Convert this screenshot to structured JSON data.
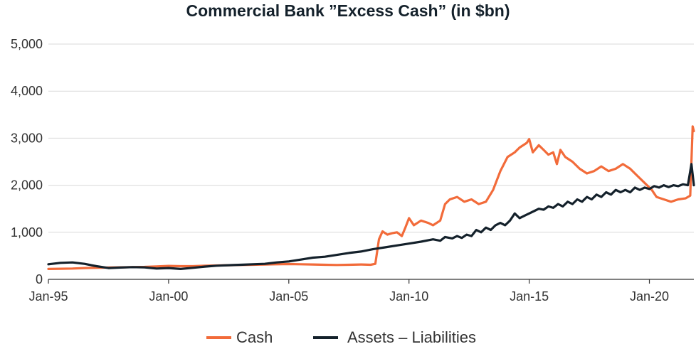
{
  "chart_data": {
    "type": "line",
    "title": "Commercial Bank ”Excess Cash” (in $bn)",
    "xlabel": "",
    "ylabel": "",
    "x_range": [
      1995.0,
      2021.85
    ],
    "ylim": [
      0,
      5000
    ],
    "y_ticks": [
      0,
      1000,
      2000,
      3000,
      4000,
      5000
    ],
    "y_tick_labels": [
      "0",
      "1,000",
      "2,000",
      "3,000",
      "4,000",
      "5,000"
    ],
    "x_ticks": [
      1995,
      2000,
      2005,
      2010,
      2015,
      2020
    ],
    "x_tick_labels": [
      "Jan-95",
      "Jan-00",
      "Jan-05",
      "Jan-10",
      "Jan-15",
      "Jan-20"
    ],
    "grid": "horizontal",
    "legend_position": "bottom",
    "series": [
      {
        "name": "Cash",
        "color": "#f26b3a",
        "points": [
          [
            1995.0,
            220
          ],
          [
            1995.5,
            225
          ],
          [
            1996.0,
            230
          ],
          [
            1996.5,
            240
          ],
          [
            1997.0,
            245
          ],
          [
            1997.5,
            250
          ],
          [
            1998.0,
            255
          ],
          [
            1998.5,
            260
          ],
          [
            1999.0,
            265
          ],
          [
            1999.5,
            275
          ],
          [
            2000.0,
            285
          ],
          [
            2000.5,
            280
          ],
          [
            2001.0,
            280
          ],
          [
            2001.5,
            290
          ],
          [
            2002.0,
            295
          ],
          [
            2002.5,
            300
          ],
          [
            2003.0,
            305
          ],
          [
            2003.5,
            310
          ],
          [
            2004.0,
            315
          ],
          [
            2004.5,
            320
          ],
          [
            2005.0,
            325
          ],
          [
            2005.5,
            320
          ],
          [
            2006.0,
            315
          ],
          [
            2006.5,
            310
          ],
          [
            2007.0,
            305
          ],
          [
            2007.5,
            310
          ],
          [
            2008.0,
            315
          ],
          [
            2008.4,
            310
          ],
          [
            2008.6,
            330
          ],
          [
            2008.75,
            850
          ],
          [
            2008.9,
            1020
          ],
          [
            2009.1,
            950
          ],
          [
            2009.3,
            980
          ],
          [
            2009.5,
            1000
          ],
          [
            2009.7,
            920
          ],
          [
            2009.85,
            1100
          ],
          [
            2010.0,
            1300
          ],
          [
            2010.2,
            1150
          ],
          [
            2010.5,
            1250
          ],
          [
            2010.8,
            1200
          ],
          [
            2011.0,
            1150
          ],
          [
            2011.3,
            1250
          ],
          [
            2011.5,
            1600
          ],
          [
            2011.7,
            1700
          ],
          [
            2012.0,
            1750
          ],
          [
            2012.3,
            1650
          ],
          [
            2012.6,
            1700
          ],
          [
            2012.9,
            1600
          ],
          [
            2013.2,
            1650
          ],
          [
            2013.5,
            1900
          ],
          [
            2013.8,
            2300
          ],
          [
            2014.1,
            2600
          ],
          [
            2014.4,
            2700
          ],
          [
            2014.6,
            2800
          ],
          [
            2014.9,
            2900
          ],
          [
            2015.0,
            2980
          ],
          [
            2015.15,
            2700
          ],
          [
            2015.4,
            2850
          ],
          [
            2015.6,
            2750
          ],
          [
            2015.8,
            2650
          ],
          [
            2016.0,
            2700
          ],
          [
            2016.15,
            2450
          ],
          [
            2016.3,
            2750
          ],
          [
            2016.5,
            2600
          ],
          [
            2016.8,
            2500
          ],
          [
            2017.1,
            2350
          ],
          [
            2017.4,
            2250
          ],
          [
            2017.7,
            2300
          ],
          [
            2018.0,
            2400
          ],
          [
            2018.3,
            2300
          ],
          [
            2018.6,
            2350
          ],
          [
            2018.9,
            2450
          ],
          [
            2019.2,
            2350
          ],
          [
            2019.5,
            2200
          ],
          [
            2019.8,
            2050
          ],
          [
            2020.1,
            1900
          ],
          [
            2020.3,
            1750
          ],
          [
            2020.6,
            1700
          ],
          [
            2020.9,
            1650
          ],
          [
            2021.2,
            1700
          ],
          [
            2021.5,
            1720
          ],
          [
            2021.7,
            1780
          ],
          [
            2021.8,
            3250
          ],
          [
            2021.85,
            3150
          ]
        ]
      },
      {
        "name": "Assets – Liabilities",
        "color": "#14212b",
        "points": [
          [
            1995.0,
            320
          ],
          [
            1995.5,
            350
          ],
          [
            1996.0,
            360
          ],
          [
            1996.5,
            330
          ],
          [
            1997.0,
            280
          ],
          [
            1997.5,
            240
          ],
          [
            1998.0,
            250
          ],
          [
            1998.5,
            260
          ],
          [
            1999.0,
            255
          ],
          [
            1999.5,
            230
          ],
          [
            2000.0,
            240
          ],
          [
            2000.5,
            220
          ],
          [
            2001.0,
            245
          ],
          [
            2001.5,
            270
          ],
          [
            2002.0,
            290
          ],
          [
            2002.5,
            300
          ],
          [
            2003.0,
            310
          ],
          [
            2003.5,
            320
          ],
          [
            2004.0,
            330
          ],
          [
            2004.5,
            360
          ],
          [
            2005.0,
            380
          ],
          [
            2005.5,
            420
          ],
          [
            2006.0,
            460
          ],
          [
            2006.5,
            480
          ],
          [
            2007.0,
            520
          ],
          [
            2007.5,
            560
          ],
          [
            2008.0,
            590
          ],
          [
            2008.5,
            640
          ],
          [
            2009.0,
            680
          ],
          [
            2009.5,
            720
          ],
          [
            2010.0,
            760
          ],
          [
            2010.5,
            800
          ],
          [
            2011.0,
            850
          ],
          [
            2011.3,
            820
          ],
          [
            2011.5,
            900
          ],
          [
            2011.8,
            870
          ],
          [
            2012.0,
            920
          ],
          [
            2012.2,
            880
          ],
          [
            2012.4,
            950
          ],
          [
            2012.6,
            920
          ],
          [
            2012.8,
            1050
          ],
          [
            2013.0,
            1000
          ],
          [
            2013.2,
            1100
          ],
          [
            2013.4,
            1050
          ],
          [
            2013.6,
            1150
          ],
          [
            2013.8,
            1200
          ],
          [
            2014.0,
            1150
          ],
          [
            2014.2,
            1250
          ],
          [
            2014.4,
            1400
          ],
          [
            2014.6,
            1300
          ],
          [
            2014.8,
            1350
          ],
          [
            2015.0,
            1400
          ],
          [
            2015.2,
            1450
          ],
          [
            2015.4,
            1500
          ],
          [
            2015.6,
            1480
          ],
          [
            2015.8,
            1550
          ],
          [
            2016.0,
            1520
          ],
          [
            2016.2,
            1600
          ],
          [
            2016.4,
            1550
          ],
          [
            2016.6,
            1650
          ],
          [
            2016.8,
            1600
          ],
          [
            2017.0,
            1700
          ],
          [
            2017.2,
            1650
          ],
          [
            2017.4,
            1750
          ],
          [
            2017.6,
            1700
          ],
          [
            2017.8,
            1800
          ],
          [
            2018.0,
            1750
          ],
          [
            2018.2,
            1850
          ],
          [
            2018.4,
            1800
          ],
          [
            2018.6,
            1900
          ],
          [
            2018.8,
            1850
          ],
          [
            2019.0,
            1900
          ],
          [
            2019.2,
            1850
          ],
          [
            2019.4,
            1950
          ],
          [
            2019.6,
            1900
          ],
          [
            2019.8,
            1950
          ],
          [
            2020.0,
            1920
          ],
          [
            2020.2,
            1980
          ],
          [
            2020.4,
            1950
          ],
          [
            2020.6,
            2000
          ],
          [
            2020.8,
            1960
          ],
          [
            2021.0,
            2000
          ],
          [
            2021.2,
            1980
          ],
          [
            2021.4,
            2020
          ],
          [
            2021.6,
            2000
          ],
          [
            2021.75,
            2450
          ],
          [
            2021.85,
            2000
          ]
        ]
      }
    ]
  }
}
